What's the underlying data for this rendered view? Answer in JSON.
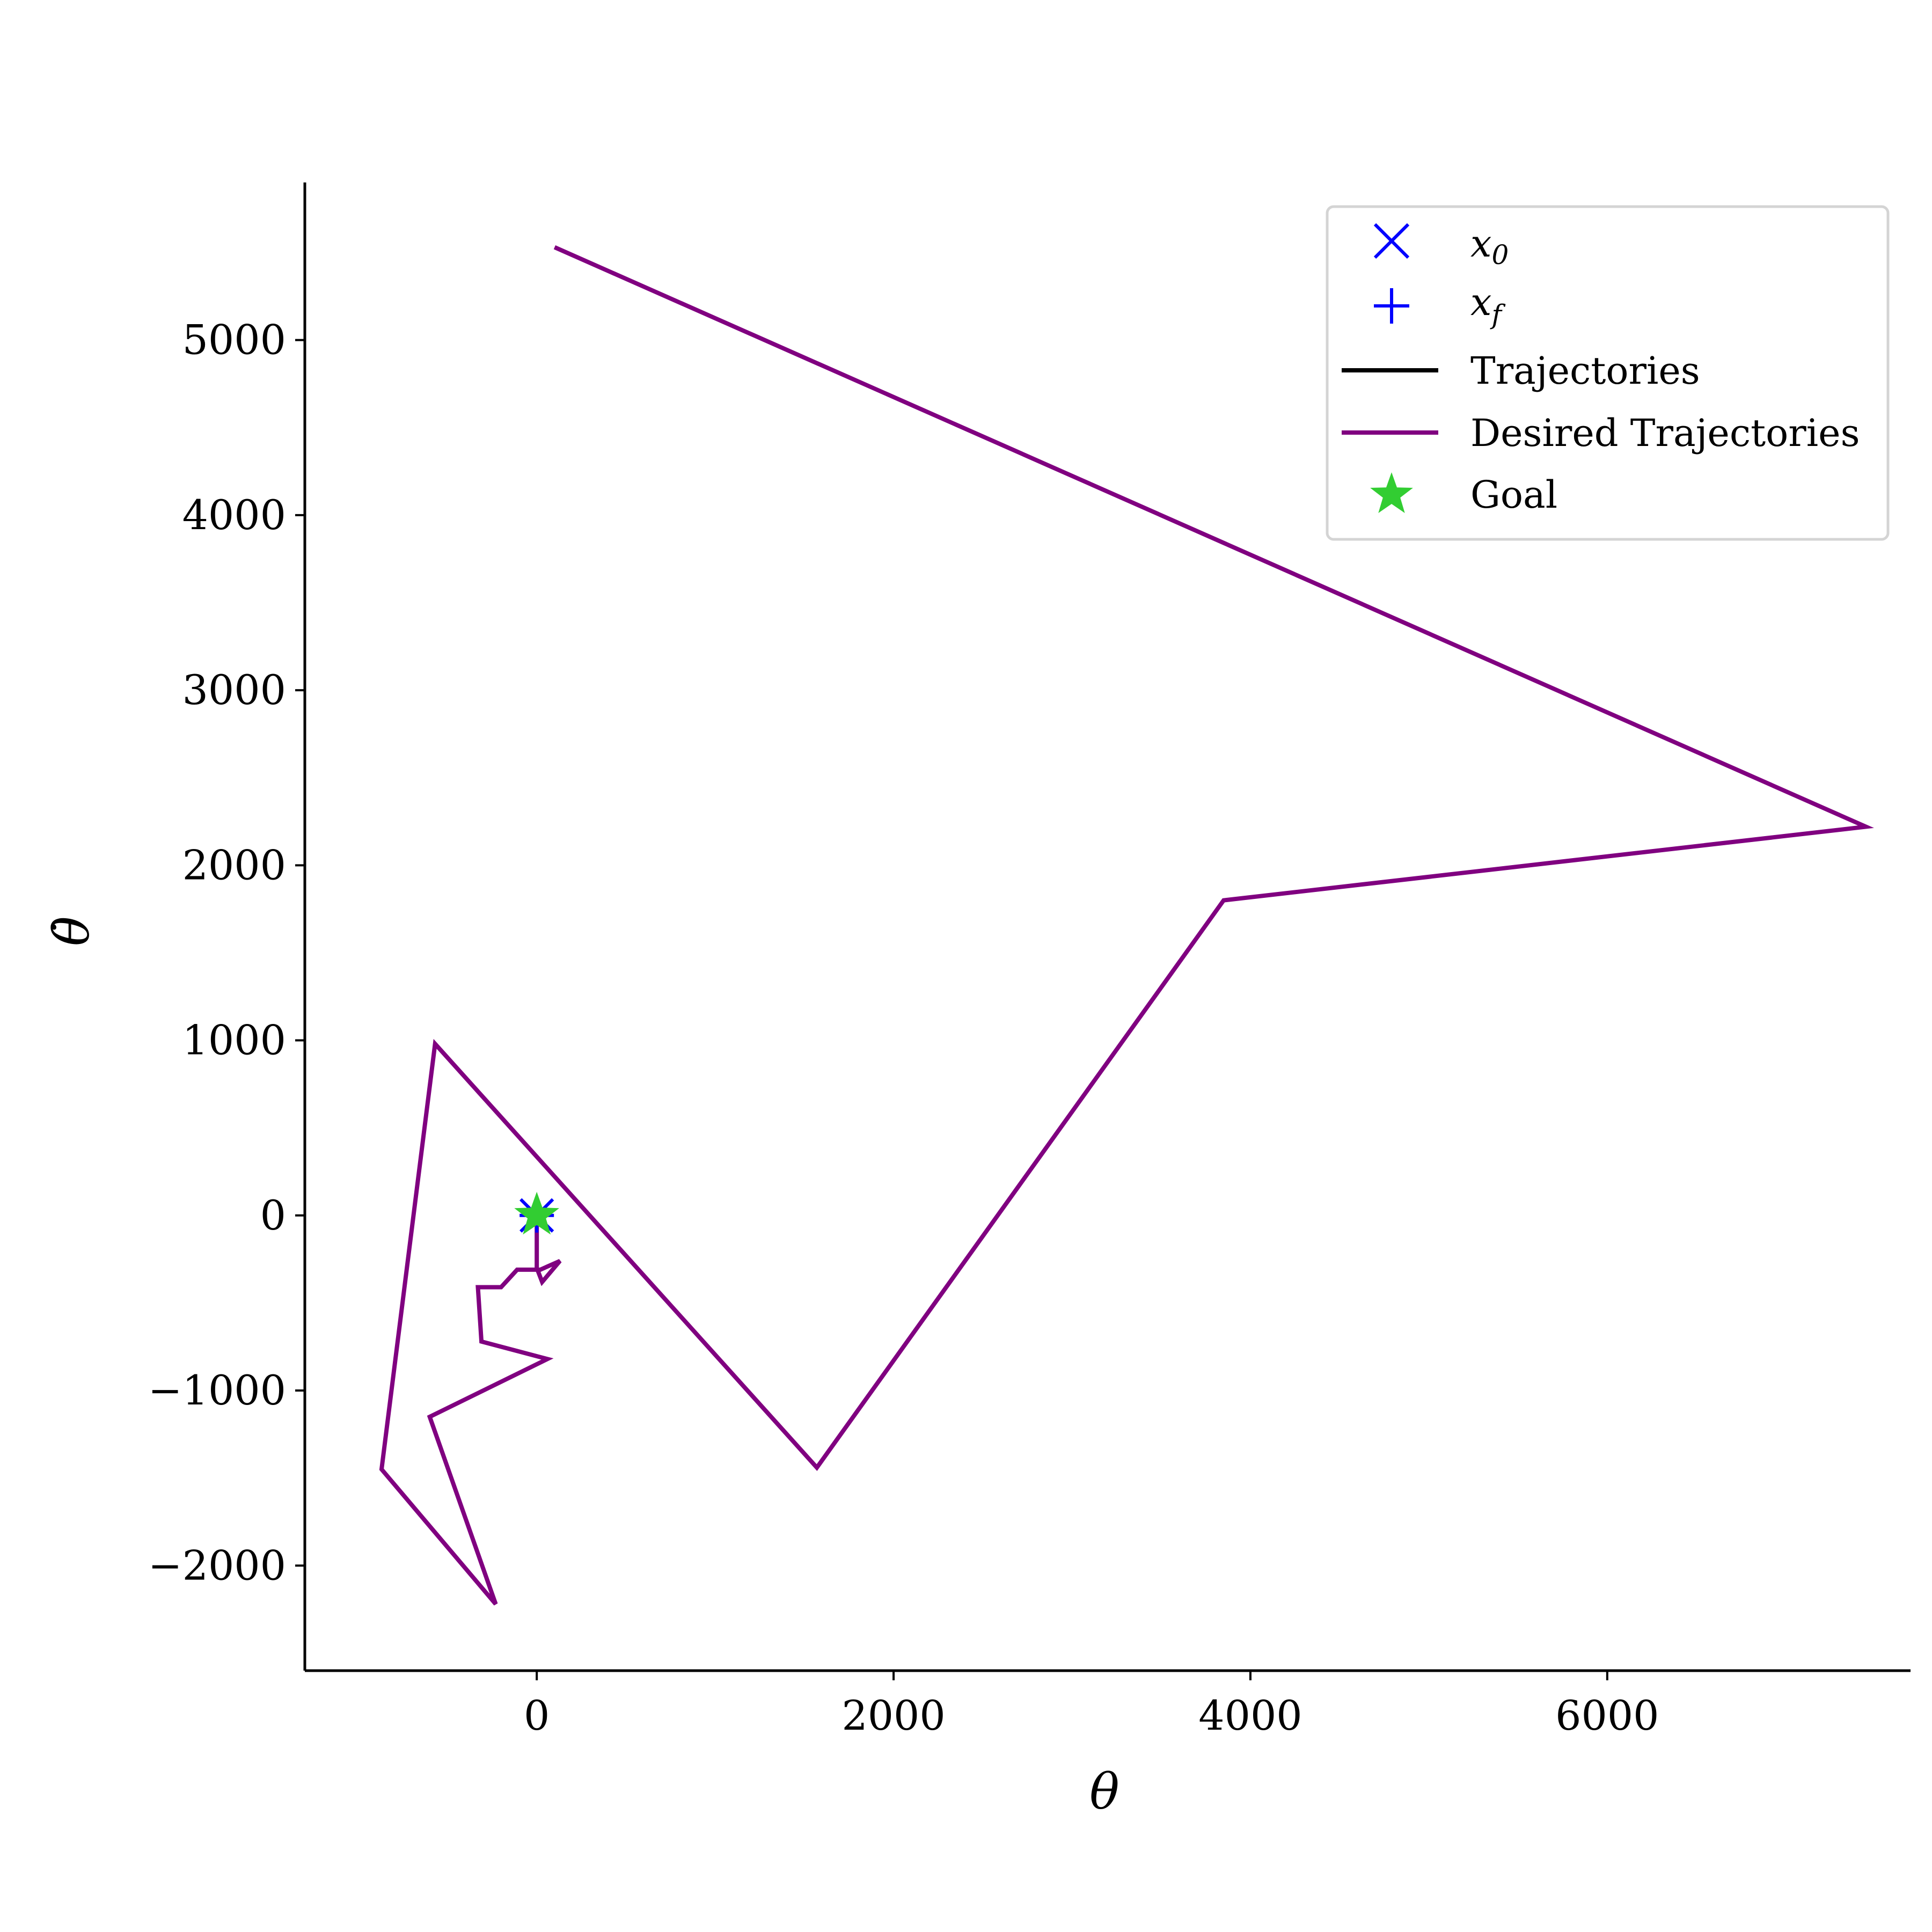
{
  "chart_data": {
    "type": "line",
    "title": "",
    "xlabel": "θ",
    "ylabel": "θ̇",
    "xlim": [
      -1300,
      7700
    ],
    "ylim": [
      -2600,
      5900
    ],
    "xticks": [
      0,
      2000,
      4000,
      6000
    ],
    "xtick_labels": [
      "0",
      "2000",
      "4000",
      "6000"
    ],
    "yticks": [
      -2000,
      -1000,
      0,
      1000,
      2000,
      3000,
      4000,
      5000
    ],
    "ytick_labels": [
      "−2000",
      "−1000",
      "0",
      "1000",
      "2000",
      "3000",
      "4000",
      "5000"
    ],
    "grid": false,
    "legend_position": "top-right",
    "legend": [
      {
        "label": "x",
        "sub": "0",
        "marker": "x",
        "color": "#0000ff"
      },
      {
        "label": "x",
        "sub": "f",
        "marker": "+",
        "color": "#0000ff"
      },
      {
        "label": "Trajectories",
        "marker": "line",
        "color": "#000000"
      },
      {
        "label": "Desired Trajectories",
        "marker": "line",
        "color": "#800080"
      },
      {
        "label": "Goal",
        "marker": "star",
        "color": "#32cd32"
      }
    ],
    "series": [
      {
        "name": "Desired Trajectories",
        "color": "#800080",
        "points": [
          [
            0,
            0
          ],
          [
            0,
            -300
          ],
          [
            30,
            -380
          ],
          [
            130,
            -260
          ],
          [
            20,
            -310
          ],
          [
            -110,
            -310
          ],
          [
            -200,
            -410
          ],
          [
            -330,
            -410
          ],
          [
            -310,
            -720
          ],
          [
            60,
            -820
          ],
          [
            -600,
            -1150
          ],
          [
            -230,
            -2220
          ],
          [
            -870,
            -1450
          ],
          [
            -570,
            980
          ],
          [
            1570,
            -1440
          ],
          [
            3850,
            1800
          ],
          [
            7450,
            2220
          ],
          [
            100,
            5530
          ]
        ]
      }
    ],
    "markers": [
      {
        "name": "x0",
        "marker": "x",
        "color": "#0000ff",
        "x": 0,
        "y": 0
      },
      {
        "name": "xf",
        "marker": "+",
        "color": "#0000ff",
        "x": 0,
        "y": 0
      },
      {
        "name": "Goal",
        "marker": "star",
        "color": "#32cd32",
        "x": 0,
        "y": 0
      }
    ]
  }
}
